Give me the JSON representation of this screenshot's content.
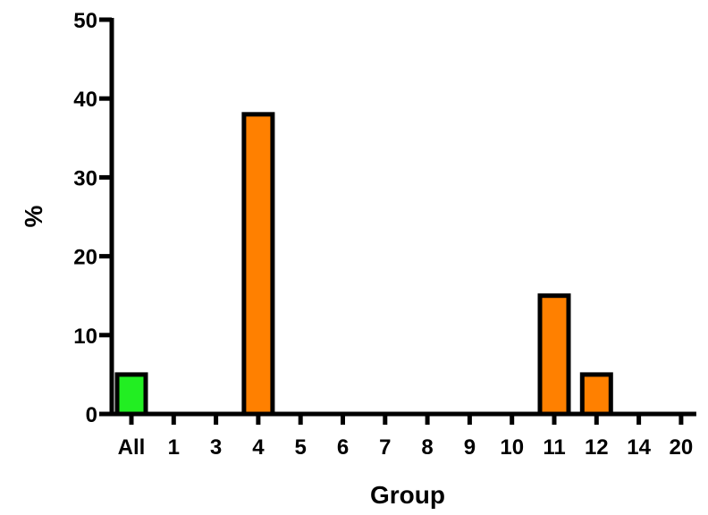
{
  "chart_data": {
    "type": "bar",
    "title": "",
    "xlabel": "Group",
    "ylabel": "%",
    "ylim": [
      0,
      50
    ],
    "yticks": [
      0,
      10,
      20,
      30,
      40,
      50
    ],
    "categories": [
      "All",
      "1",
      "3",
      "4",
      "5",
      "6",
      "7",
      "8",
      "9",
      "10",
      "11",
      "12",
      "14",
      "20"
    ],
    "values": [
      5,
      0,
      0,
      38,
      0,
      0,
      0,
      0,
      0,
      0,
      15,
      5,
      0,
      0
    ],
    "bar_colors": [
      "#22ee22",
      "#ff8000",
      "#ff8000",
      "#ff8000",
      "#ff8000",
      "#ff8000",
      "#ff8000",
      "#ff8000",
      "#ff8000",
      "#ff8000",
      "#ff8000",
      "#ff8000",
      "#ff8000",
      "#ff8000"
    ],
    "bar_outline_color": "#000000",
    "grid": false,
    "legend": "none"
  }
}
